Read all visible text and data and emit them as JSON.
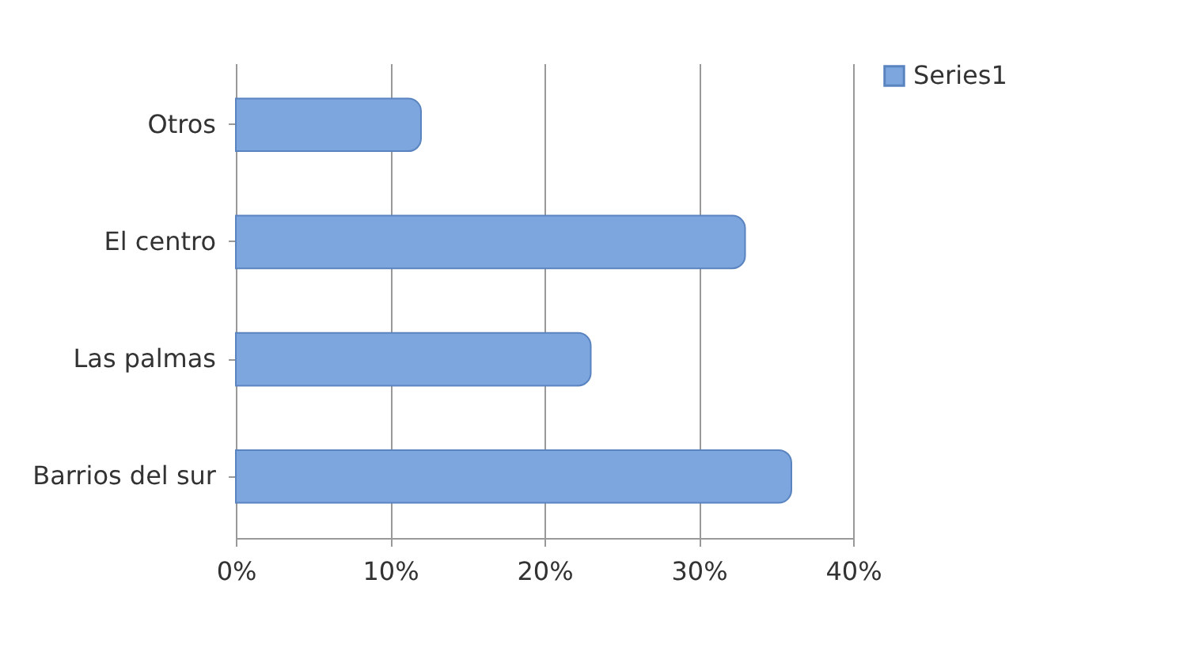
{
  "chart_data": {
    "type": "bar",
    "orientation": "horizontal",
    "categories": [
      "Otros",
      "El centro",
      "Las palmas",
      "Barrios del sur"
    ],
    "series": [
      {
        "name": "Series1",
        "color": "#7ea6de",
        "values": [
          12,
          33,
          23,
          36
        ]
      }
    ],
    "xlim": [
      0,
      40
    ],
    "xticks": [
      {
        "value": 0,
        "label": "0%"
      },
      {
        "value": 10,
        "label": "10%"
      },
      {
        "value": 20,
        "label": "20%"
      },
      {
        "value": 30,
        "label": "30%"
      },
      {
        "value": 40,
        "label": "40%"
      }
    ],
    "grid": "x",
    "legend": "right"
  }
}
